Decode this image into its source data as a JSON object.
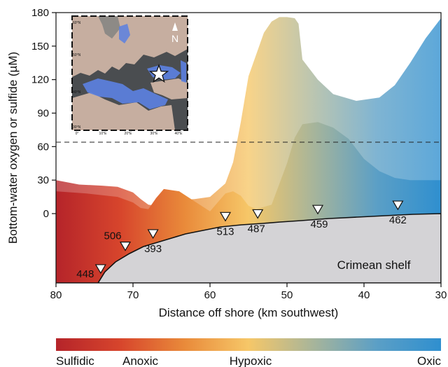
{
  "chart_data": {
    "type": "area",
    "xlabel": "Distance off shore (km southwest)",
    "ylabel": "Bottom-water oxygen or sulfide (µM)",
    "xlim": [
      80,
      30
    ],
    "ylim": [
      0,
      180
    ],
    "x_reversed": true,
    "x_ticks": [
      80,
      70,
      60,
      50,
      40,
      30
    ],
    "y_ticks": [
      0,
      30,
      60,
      90,
      120,
      150,
      180
    ],
    "reference_line": {
      "y": 64,
      "style": "dashed"
    },
    "shelf_label": "Crimean shelf",
    "stations": [
      {
        "id": "448",
        "x": 74.2
      },
      {
        "id": "506",
        "x": 71.0
      },
      {
        "id": "393",
        "x": 67.4
      },
      {
        "id": "513",
        "x": 58.0
      },
      {
        "id": "487",
        "x": 53.8
      },
      {
        "id": "459",
        "x": 46.0
      },
      {
        "id": "462",
        "x": 35.6
      }
    ],
    "series": [
      {
        "x": [
          80,
          77,
          74,
          72,
          70,
          69,
          68,
          67,
          65,
          62,
          60,
          58,
          57,
          56,
          55,
          53,
          52,
          51,
          50,
          49,
          48.5,
          48,
          46,
          44,
          41,
          38,
          36,
          34,
          32,
          30
        ],
        "values": [
          30,
          26,
          25,
          24,
          19,
          13,
          8,
          7,
          12,
          13,
          15,
          27,
          46,
          82,
          123,
          162,
          172,
          176,
          176,
          175,
          170,
          138,
          120,
          107,
          101,
          104,
          115,
          135,
          157,
          175
        ]
      },
      {
        "x": [
          80,
          76,
          72,
          70,
          69,
          68,
          67,
          66,
          64,
          62,
          60,
          58,
          57,
          56,
          55,
          54,
          52,
          50,
          49,
          48,
          46,
          44,
          42,
          40,
          38,
          36,
          34,
          32,
          30
        ],
        "values": [
          20,
          18,
          15,
          10,
          5,
          4,
          14,
          22,
          20,
          11,
          2,
          18,
          20,
          16,
          7,
          4,
          8,
          45,
          68,
          80,
          82,
          77,
          67,
          49,
          38,
          32,
          30,
          30,
          30
        ]
      }
    ],
    "colorbar": {
      "colors": [
        "#b5242a",
        "#d7452c",
        "#e98a3a",
        "#f6c768",
        "#a8b59a",
        "#5b9fc6",
        "#2f8fcf"
      ],
      "labels": [
        "Sulfidic",
        "Anoxic",
        "Hypoxic",
        "Oxic"
      ]
    },
    "inset_map": {
      "north_label": "N",
      "lat_labels": [
        "60°N",
        "50°N",
        "40°N",
        "30°N"
      ],
      "lon_labels": [
        "0°",
        "10°E",
        "20°E",
        "30°E",
        "40°E"
      ]
    }
  }
}
